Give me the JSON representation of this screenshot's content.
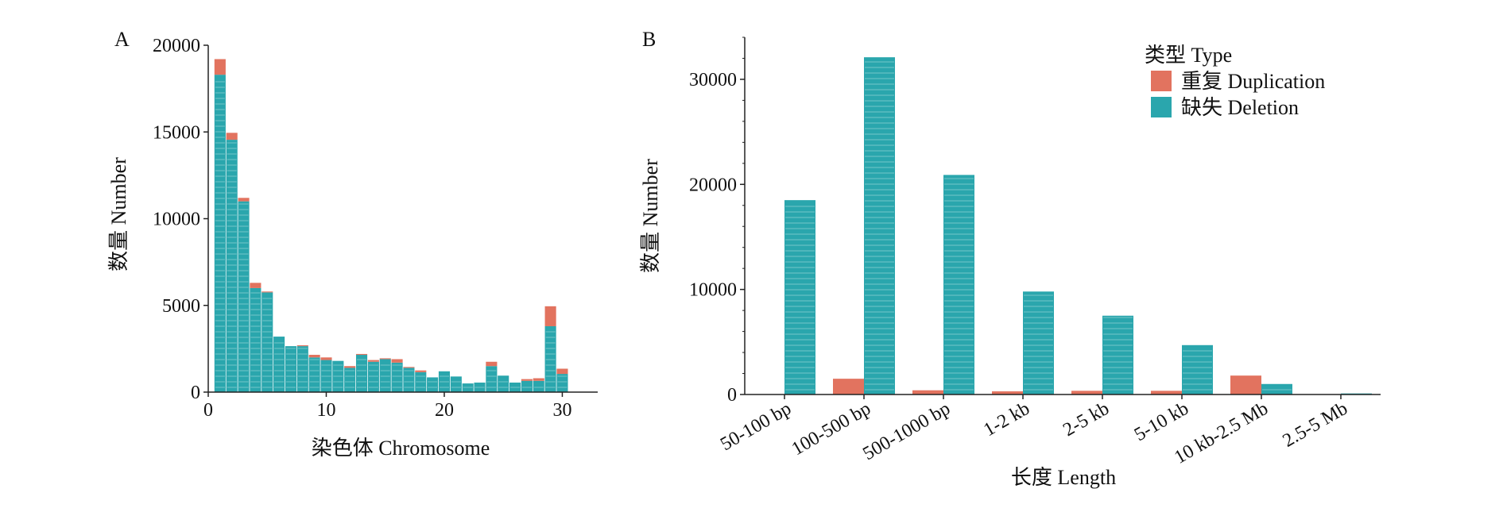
{
  "figure": {
    "colors": {
      "duplication": "#e2735f",
      "deletion": "#2aa6ad",
      "axis": "#222222"
    },
    "legend": {
      "title": "类型 Type",
      "entries": [
        "重复 Duplication",
        "缺失 Deletion"
      ],
      "placement": "top-right of panel B"
    }
  },
  "chart_data": [
    {
      "panel": "A",
      "type": "bar",
      "stacked": true,
      "xlabel": "染色体 Chromosome",
      "ylabel": "数量 Number",
      "xlim": [
        0,
        33
      ],
      "ylim": [
        0,
        20000
      ],
      "xticks": [
        "0",
        "10",
        "20",
        "30"
      ],
      "yticks": [
        "0",
        "5000",
        "10000",
        "15000",
        "20000"
      ],
      "grid": false,
      "x": [
        1,
        2,
        3,
        4,
        5,
        6,
        7,
        8,
        9,
        10,
        11,
        12,
        13,
        14,
        15,
        16,
        17,
        18,
        19,
        20,
        21,
        22,
        23,
        24,
        25,
        26,
        27,
        28,
        29,
        30
      ],
      "series": [
        {
          "name": "缺失 Deletion",
          "values": [
            18300,
            14550,
            11000,
            6000,
            5750,
            3200,
            2650,
            2650,
            2000,
            1850,
            1800,
            1400,
            2150,
            1750,
            1900,
            1700,
            1400,
            1150,
            850,
            1200,
            900,
            500,
            550,
            1500,
            950,
            550,
            650,
            650,
            3800,
            1050
          ]
        },
        {
          "name": "重复 Duplication",
          "values": [
            900,
            400,
            200,
            300,
            50,
            0,
            0,
            50,
            150,
            150,
            0,
            100,
            50,
            100,
            50,
            200,
            50,
            100,
            0,
            0,
            0,
            0,
            0,
            250,
            0,
            0,
            100,
            150,
            1150,
            300
          ]
        }
      ]
    },
    {
      "panel": "B",
      "type": "bar",
      "grouped": true,
      "xlabel": "长度 Length",
      "ylabel": "数量 Number",
      "ylim": [
        0,
        34000
      ],
      "yticks": [
        "0",
        "10000",
        "20000",
        "30000"
      ],
      "grid": false,
      "categories": [
        "50-100 bp",
        "100-500 bp",
        "500-1000 bp",
        "1-2 kb",
        "2-5 kb",
        "5-10 kb",
        "10 kb-2.5 Mb",
        "2.5-5 Mb"
      ],
      "series": [
        {
          "name": "重复 Duplication",
          "values": [
            0,
            1500,
            400,
            300,
            350,
            350,
            1800,
            0
          ]
        },
        {
          "name": "缺失 Deletion",
          "values": [
            18500,
            32100,
            20900,
            9800,
            7500,
            4700,
            1000,
            100
          ]
        }
      ]
    }
  ]
}
